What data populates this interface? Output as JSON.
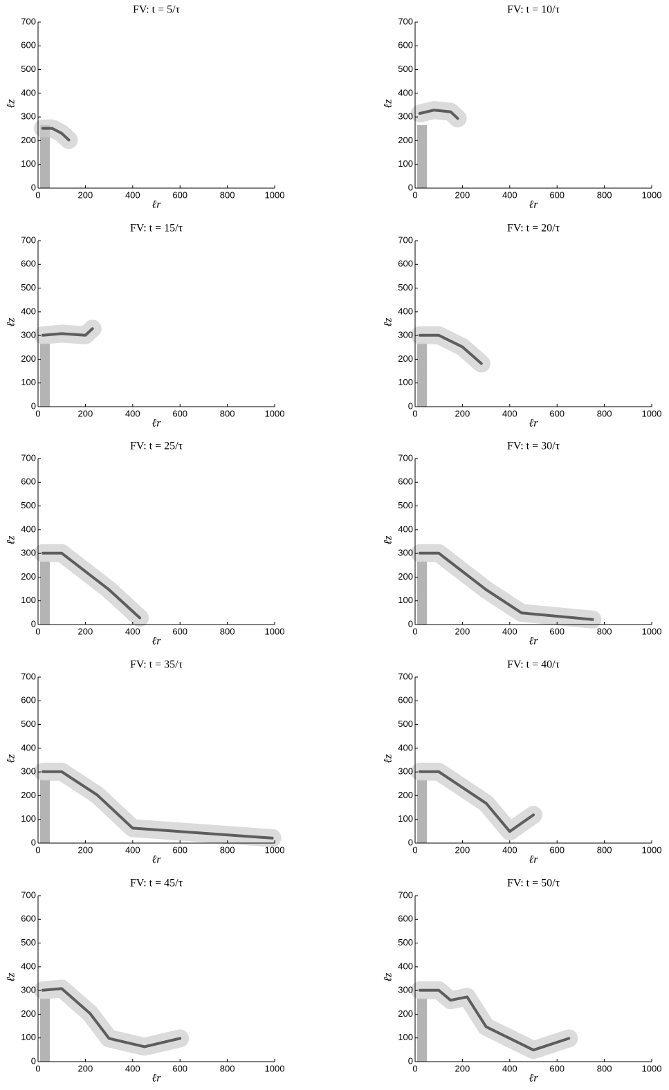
{
  "chart_data": [
    {
      "type": "field",
      "title": "FV: t = 5/τ",
      "xlabel": "ℓr",
      "ylabel": "ℓz",
      "xlim": [
        0,
        1000
      ],
      "ylim": [
        0,
        700
      ],
      "xticks": [
        0,
        200,
        400,
        600,
        800,
        1000
      ],
      "yticks": [
        0,
        100,
        200,
        300,
        400,
        500,
        600,
        700
      ]
    },
    {
      "type": "field",
      "title": "FV: t = 10/τ",
      "xlabel": "ℓr",
      "ylabel": "ℓz",
      "xlim": [
        0,
        1000
      ],
      "ylim": [
        0,
        700
      ],
      "xticks": [
        0,
        200,
        400,
        600,
        800,
        1000
      ],
      "yticks": [
        0,
        100,
        200,
        300,
        400,
        500,
        600,
        700
      ]
    },
    {
      "type": "field",
      "title": "FV: t = 15/τ",
      "xlabel": "ℓr",
      "ylabel": "ℓz",
      "xlim": [
        0,
        1000
      ],
      "ylim": [
        0,
        700
      ],
      "xticks": [
        0,
        200,
        400,
        600,
        800,
        1000
      ],
      "yticks": [
        0,
        100,
        200,
        300,
        400,
        500,
        600,
        700
      ]
    },
    {
      "type": "field",
      "title": "FV: t = 20/τ",
      "xlabel": "ℓr",
      "ylabel": "ℓz",
      "xlim": [
        0,
        1000
      ],
      "ylim": [
        0,
        700
      ],
      "xticks": [
        0,
        200,
        400,
        600,
        800,
        1000
      ],
      "yticks": [
        0,
        100,
        200,
        300,
        400,
        500,
        600,
        700
      ]
    },
    {
      "type": "field",
      "title": "FV: t = 25/τ",
      "xlabel": "ℓr",
      "ylabel": "ℓz",
      "xlim": [
        0,
        1000
      ],
      "ylim": [
        0,
        700
      ],
      "xticks": [
        0,
        200,
        400,
        600,
        800,
        1000
      ],
      "yticks": [
        0,
        100,
        200,
        300,
        400,
        500,
        600,
        700
      ]
    },
    {
      "type": "field",
      "title": "FV: t = 30/τ",
      "xlabel": "ℓr",
      "ylabel": "ℓz",
      "xlim": [
        0,
        1000
      ],
      "ylim": [
        0,
        700
      ],
      "xticks": [
        0,
        200,
        400,
        600,
        800,
        1000
      ],
      "yticks": [
        0,
        100,
        200,
        300,
        400,
        500,
        600,
        700
      ]
    },
    {
      "type": "field",
      "title": "FV: t = 35/τ",
      "xlabel": "ℓr",
      "ylabel": "ℓz",
      "xlim": [
        0,
        1000
      ],
      "ylim": [
        0,
        700
      ],
      "xticks": [
        0,
        200,
        400,
        600,
        800,
        1000
      ],
      "yticks": [
        0,
        100,
        200,
        300,
        400,
        500,
        600,
        700
      ]
    },
    {
      "type": "field",
      "title": "FV: t = 40/τ",
      "xlabel": "ℓr",
      "ylabel": "ℓz",
      "xlim": [
        0,
        1000
      ],
      "ylim": [
        0,
        700
      ],
      "xticks": [
        0,
        200,
        400,
        600,
        800,
        1000
      ],
      "yticks": [
        0,
        100,
        200,
        300,
        400,
        500,
        600,
        700
      ]
    },
    {
      "type": "field",
      "title": "FV: t = 45/τ",
      "xlabel": "ℓr",
      "ylabel": "ℓz",
      "xlim": [
        0,
        1000
      ],
      "ylim": [
        0,
        700
      ],
      "xticks": [
        0,
        200,
        400,
        600,
        800,
        1000
      ],
      "yticks": [
        0,
        100,
        200,
        300,
        400,
        500,
        600,
        700
      ]
    },
    {
      "type": "field",
      "title": "FV: t = 50/τ",
      "xlabel": "ℓr",
      "ylabel": "ℓz",
      "xlim": [
        0,
        1000
      ],
      "ylim": [
        0,
        700
      ],
      "xticks": [
        0,
        200,
        400,
        600,
        800,
        1000
      ],
      "yticks": [
        0,
        100,
        200,
        300,
        400,
        500,
        600,
        700
      ]
    }
  ]
}
